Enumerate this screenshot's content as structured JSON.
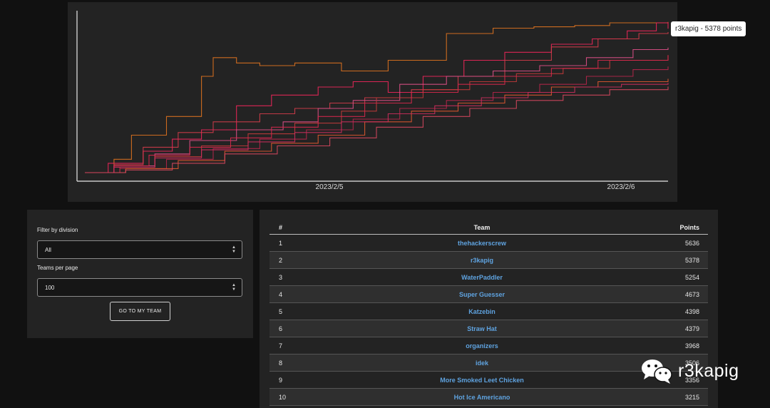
{
  "chart": {
    "xtick_labels": [
      "2023/2/5",
      "2023/2/6"
    ],
    "tooltip": "r3kapig - 5378 points",
    "series_colors": [
      "#e0731f",
      "#f0265a",
      "#d43c4a",
      "#e05088",
      "#c23a3a",
      "#d9284c",
      "#b5264a",
      "#e0582f",
      "#cc2d5d",
      "#d9475f"
    ]
  },
  "chart_data": {
    "type": "line",
    "xlabel": "",
    "ylabel": "",
    "x_ticks": [
      "2023/2/5",
      "2023/2/6"
    ],
    "ylim": [
      0,
      6000
    ],
    "grid": false,
    "series": [
      {
        "x": [
          0.0,
          0.05,
          0.08,
          0.14,
          0.2,
          0.22,
          0.26,
          0.3,
          0.36,
          0.44,
          0.52,
          0.58,
          0.62,
          0.7,
          0.77,
          0.84,
          0.9,
          1.0
        ],
        "values": [
          0,
          500,
          1400,
          2100,
          3600,
          4300,
          4100,
          4000,
          4100,
          3800,
          4200,
          4200,
          5200,
          5400,
          5450,
          5500,
          5600,
          5636
        ]
      },
      {
        "x": [
          0.0,
          0.04,
          0.1,
          0.15,
          0.2,
          0.26,
          0.32,
          0.4,
          0.46,
          0.52,
          0.58,
          0.65,
          0.72,
          0.8,
          0.87,
          0.93,
          0.98,
          1.0
        ],
        "values": [
          0,
          350,
          800,
          1250,
          1600,
          2500,
          2900,
          3200,
          3400,
          3000,
          3600,
          4200,
          4500,
          4800,
          5000,
          5300,
          5600,
          5378
        ]
      },
      {
        "x": [
          0.0,
          0.05,
          0.1,
          0.16,
          0.22,
          0.3,
          0.36,
          0.42,
          0.48,
          0.56,
          0.64,
          0.72,
          0.8,
          0.88,
          0.95,
          1.0
        ],
        "values": [
          0,
          300,
          950,
          1500,
          1900,
          2200,
          2400,
          2600,
          2800,
          3100,
          3600,
          4200,
          4700,
          5000,
          5200,
          5254
        ]
      },
      {
        "x": [
          0.0,
          0.05,
          0.12,
          0.18,
          0.26,
          0.34,
          0.4,
          0.46,
          0.54,
          0.62,
          0.7,
          0.78,
          0.86,
          0.94,
          1.0
        ],
        "values": [
          0,
          250,
          700,
          1200,
          1600,
          1900,
          2400,
          2700,
          3300,
          3600,
          3800,
          4000,
          4300,
          4600,
          4673
        ]
      },
      {
        "x": [
          0.0,
          0.06,
          0.12,
          0.2,
          0.28,
          0.36,
          0.44,
          0.5,
          0.58,
          0.66,
          0.74,
          0.82,
          0.9,
          1.0
        ],
        "values": [
          0,
          200,
          600,
          1000,
          1450,
          1850,
          2300,
          2800,
          3100,
          3400,
          3700,
          3900,
          4200,
          4398
        ]
      },
      {
        "x": [
          0.0,
          0.05,
          0.11,
          0.18,
          0.25,
          0.32,
          0.4,
          0.48,
          0.56,
          0.64,
          0.72,
          0.8,
          0.88,
          1.0
        ],
        "values": [
          0,
          250,
          650,
          950,
          1300,
          1700,
          2100,
          2600,
          3000,
          3300,
          3600,
          3900,
          4200,
          4379
        ]
      },
      {
        "x": [
          0.0,
          0.06,
          0.14,
          0.22,
          0.3,
          0.38,
          0.46,
          0.54,
          0.62,
          0.7,
          0.78,
          0.86,
          0.94,
          1.0
        ],
        "values": [
          0,
          150,
          500,
          900,
          1250,
          1600,
          2000,
          2400,
          2700,
          3000,
          3300,
          3600,
          3850,
          3968
        ]
      },
      {
        "x": [
          0.0,
          0.07,
          0.16,
          0.24,
          0.32,
          0.4,
          0.48,
          0.56,
          0.64,
          0.72,
          0.8,
          0.88,
          1.0
        ],
        "values": [
          0,
          150,
          450,
          800,
          1100,
          1400,
          1900,
          2300,
          2600,
          2900,
          3200,
          3400,
          3506
        ]
      },
      {
        "x": [
          0.0,
          0.05,
          0.12,
          0.2,
          0.28,
          0.36,
          0.44,
          0.52,
          0.6,
          0.68,
          0.76,
          0.84,
          0.92,
          1.0
        ],
        "values": [
          0,
          200,
          550,
          850,
          1150,
          1500,
          1900,
          2200,
          2500,
          2800,
          3000,
          3200,
          3300,
          3356
        ]
      },
      {
        "x": [
          0.0,
          0.07,
          0.15,
          0.24,
          0.33,
          0.42,
          0.5,
          0.58,
          0.66,
          0.74,
          0.82,
          0.9,
          1.0
        ],
        "values": [
          0,
          100,
          350,
          700,
          1000,
          1300,
          1700,
          2100,
          2400,
          2700,
          2900,
          3100,
          3215
        ]
      }
    ]
  },
  "filters": {
    "division_label": "Filter by division",
    "division_value": "All",
    "teams_per_page_label": "Teams per page",
    "teams_per_page_value": "100",
    "go_button": "GO TO MY TEAM"
  },
  "scoreboard": {
    "headers": {
      "rank": "#",
      "team": "Team",
      "points": "Points"
    },
    "rows": [
      {
        "rank": "1",
        "team": "thehackerscrew",
        "points": "5636"
      },
      {
        "rank": "2",
        "team": "r3kapig",
        "points": "5378"
      },
      {
        "rank": "3",
        "team": "WaterPaddler",
        "points": "5254"
      },
      {
        "rank": "4",
        "team": "Super Guesser",
        "points": "4673"
      },
      {
        "rank": "5",
        "team": "Katzebin",
        "points": "4398"
      },
      {
        "rank": "6",
        "team": "Straw Hat",
        "points": "4379"
      },
      {
        "rank": "7",
        "team": "organizers",
        "points": "3968"
      },
      {
        "rank": "8",
        "team": "idek",
        "points": "3506"
      },
      {
        "rank": "9",
        "team": "More Smoked Leet Chicken",
        "points": "3356"
      },
      {
        "rank": "10",
        "team": "Hot Ice Americano",
        "points": "3215"
      }
    ]
  },
  "watermark": {
    "text": "r3kapig",
    "icon": "wechat-icon"
  }
}
